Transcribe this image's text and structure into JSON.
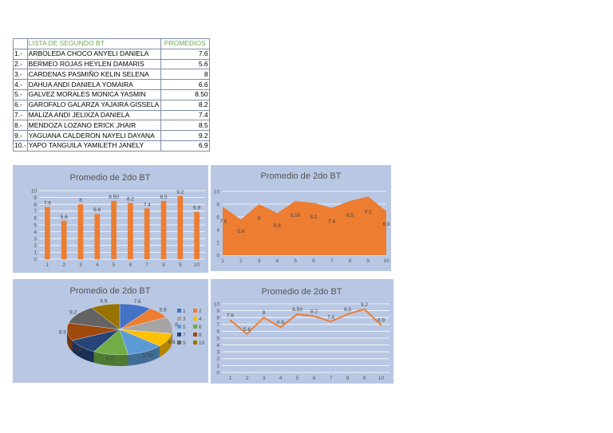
{
  "table": {
    "header_name": "LISTA DE SEGUNDO BT",
    "header_value": "PROMEDIOS",
    "rows": [
      {
        "num": "1.-",
        "name": "ARBOLEDA CHOCO ANYELI DANIELA",
        "value": "7.6"
      },
      {
        "num": "2.-",
        "name": "BERMEO ROJAS HEYLEN DAMARIS",
        "value": "5.6"
      },
      {
        "num": "3.-",
        "name": "CARDENAS PASMIÑO KELIN SELENA",
        "value": "8"
      },
      {
        "num": "4.-",
        "name": "DAHUA ANDI DANIELA YOMAIRA",
        "value": "6.6"
      },
      {
        "num": "5.-",
        "name": "GALVEZ MORALES MONICA YASMIN",
        "value": "8.50"
      },
      {
        "num": "6.-",
        "name": "GAROFALO GALARZA YAJAIRA GISSELA",
        "value": "8.2"
      },
      {
        "num": "7.-",
        "name": "MALIZA ANDI JELIXZA DANIELA",
        "value": "7.4"
      },
      {
        "num": "8.-",
        "name": "MENDOZA LOZANO ERICK JHAIR",
        "value": "8.5"
      },
      {
        "num": "9.-",
        "name": "YAGUANA CALDERON NAYELI DAYANA",
        "value": "9.2"
      },
      {
        "num": "10.-",
        "name": "YAPO TANGUILA YAMILETH JANELY",
        "value": "6.9"
      }
    ]
  },
  "colors": {
    "panel_bg": "#b8c7e3",
    "series": "#ed7d31",
    "grid": "#ffffff",
    "text": "#595959",
    "pie": [
      "#4472c4",
      "#ed7d31",
      "#a5a5a5",
      "#ffc000",
      "#5b9bd5",
      "#70ad47",
      "#264478",
      "#9e480e",
      "#636363",
      "#997300"
    ]
  },
  "chart_data": [
    {
      "type": "bar",
      "title": "Promedio de 2do BT",
      "categories": [
        "1",
        "2",
        "3",
        "4",
        "5",
        "6",
        "7",
        "8",
        "9",
        "10"
      ],
      "values": [
        7.6,
        5.6,
        8,
        6.6,
        8.5,
        8.2,
        7.4,
        8.5,
        9.2,
        6.9
      ],
      "labels": [
        "7.6",
        "5.6",
        "8",
        "6.6",
        "8.50",
        "8.2",
        "7.4",
        "8.5",
        "9.2",
        "6.9"
      ],
      "yticks": [
        "0",
        "1",
        "2",
        "3",
        "4",
        "5",
        "6",
        "7",
        "8",
        "9",
        "10"
      ],
      "ylim": [
        0,
        10
      ]
    },
    {
      "type": "area",
      "title": "Promedio de 2do BT",
      "categories": [
        "1",
        "2",
        "3",
        "4",
        "5",
        "6",
        "7",
        "8",
        "9",
        "10"
      ],
      "values": [
        7.6,
        5.6,
        8,
        6.6,
        8.5,
        8.2,
        7.4,
        8.5,
        9.2,
        6.9
      ],
      "labels": [
        "7.6",
        "5.6",
        "8",
        "6.6",
        "8.50",
        "8.2",
        "7.4",
        "8.5",
        "9.2",
        "6.9"
      ],
      "yticks": [
        "0",
        "2",
        "4",
        "6",
        "8",
        "10"
      ],
      "ylim": [
        0,
        10
      ]
    },
    {
      "type": "pie",
      "title": "Promedio de 2do BT",
      "categories": [
        "1",
        "2",
        "3",
        "4",
        "5",
        "6",
        "7",
        "8",
        "9",
        "10"
      ],
      "values": [
        7.6,
        5.6,
        8,
        6.6,
        8.5,
        8.2,
        7.4,
        8.5,
        9.2,
        6.9
      ],
      "labels": [
        "7.6",
        "5.6",
        "8",
        "6.6",
        "8.50",
        "8.2",
        "7.4",
        "8.5",
        "9.2",
        "6.9"
      ],
      "legend": [
        "1",
        "2",
        "3",
        "4",
        "5",
        "6",
        "7",
        "8",
        "9",
        "10"
      ]
    },
    {
      "type": "line",
      "title": "Promedio de 2do BT",
      "categories": [
        "1",
        "2",
        "3",
        "4",
        "5",
        "6",
        "7",
        "8",
        "9",
        "10"
      ],
      "values": [
        7.6,
        5.6,
        8,
        6.6,
        8.5,
        8.2,
        7.4,
        8.5,
        9.2,
        6.9
      ],
      "labels": [
        "7.6",
        "5.6",
        "8",
        "6.6",
        "8.50",
        "8.2",
        "7.4",
        "8.5",
        "9.2",
        "6.9"
      ],
      "yticks": [
        "0",
        "1",
        "2",
        "3",
        "4",
        "5",
        "6",
        "7",
        "8",
        "9",
        "10"
      ],
      "ylim": [
        0,
        10
      ]
    }
  ]
}
